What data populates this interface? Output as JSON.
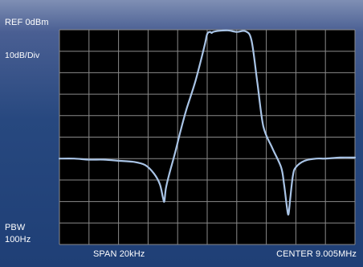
{
  "chart_data": {
    "type": "line",
    "title": "",
    "ref_level": "REF 0dBm",
    "scale": "10dB/Div",
    "rbw_label": "PBW",
    "rbw_value": "100Hz",
    "span": "SPAN 20kHz",
    "center": "CENTER 9.005MHz",
    "xlabel": "",
    "ylabel": "",
    "x_divisions": 10,
    "y_divisions": 10,
    "xlim": [
      0,
      10
    ],
    "ylim": [
      -100,
      0
    ],
    "grid": true,
    "line_color": "#a9c4e6",
    "series": [
      {
        "x": [
          0,
          0.5,
          1.0,
          1.5,
          2.0,
          2.5,
          2.9,
          3.2,
          3.4,
          3.5,
          3.55,
          3.6,
          3.7,
          3.9,
          4.1,
          4.3,
          4.6,
          4.9,
          5.0,
          5.1,
          5.15,
          5.2,
          5.4,
          5.7,
          6.0,
          6.3,
          6.5,
          6.7,
          6.9,
          7.2,
          7.5,
          7.6,
          7.7,
          7.75,
          7.8,
          7.9,
          8.0,
          8.3,
          8.7,
          9.0,
          9.5,
          10.0
        ],
        "y": [
          -60,
          -60,
          -60.5,
          -60.5,
          -61,
          -61.5,
          -63,
          -67,
          -72,
          -78,
          -80,
          -74,
          -68,
          -58,
          -47,
          -37,
          -24,
          -8,
          -2,
          -1,
          -1.5,
          -1,
          -0.5,
          -0.3,
          -1,
          -0.7,
          -5,
          -25,
          -45,
          -55,
          -64,
          -72,
          -83,
          -86,
          -80,
          -68,
          -64,
          -61,
          -60,
          -60,
          -59.5,
          -59.5
        ]
      }
    ]
  }
}
